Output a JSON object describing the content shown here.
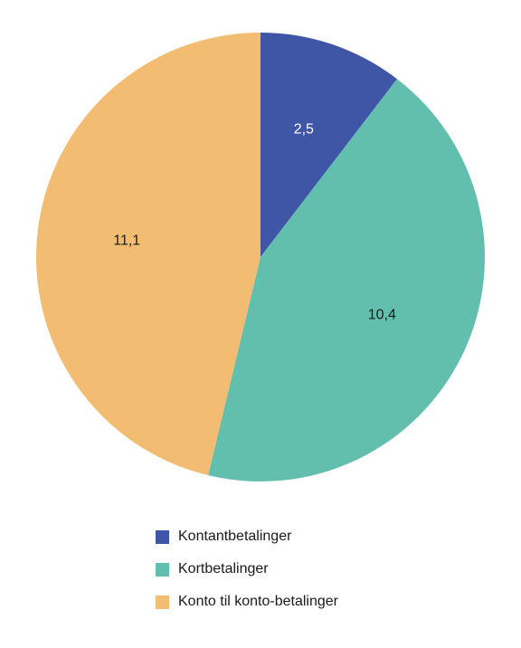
{
  "chart_data": {
    "type": "pie",
    "categories": [
      "Kontantbetalinger",
      "Kortbetalinger",
      "Konto til konto-betalinger"
    ],
    "values": [
      2.5,
      10.4,
      11.1
    ],
    "value_labels": [
      "2,5",
      "10,4",
      "11,1"
    ],
    "colors": [
      "#3f56a6",
      "#63bfad",
      "#f2bd72"
    ],
    "start_angle": "12 o'clock",
    "direction": "clockwise",
    "legend_position": "bottom"
  }
}
